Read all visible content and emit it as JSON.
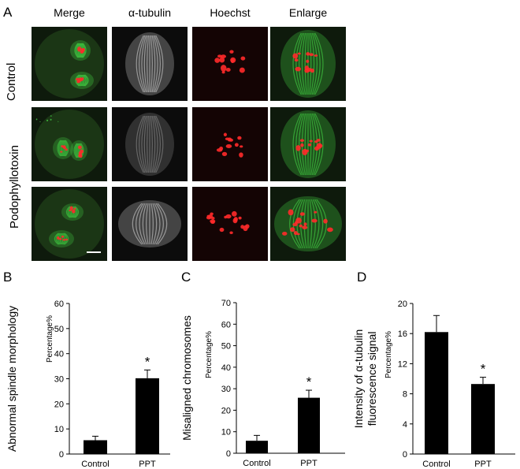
{
  "figure": {
    "panel_a": {
      "letter": "A",
      "columns": [
        "Merge",
        "α-tubulin",
        "Hoechst",
        "Enlarge"
      ],
      "row_labels": [
        "Control",
        "Podophyllotoxin"
      ]
    },
    "colors": {
      "bar": "#000000",
      "tubulin_green": "#3fbf3f",
      "chromosome_red": "#ff2a2a",
      "tubulin_gray": "#c8c8c8"
    }
  },
  "chart_data": [
    {
      "type": "bar",
      "panel": "B",
      "ylabel": "Abnormal spindle morphology",
      "ylabel_unit": "Percentage%",
      "categories": [
        "Control",
        "PPT"
      ],
      "values": [
        5.5,
        30.2
      ],
      "errors": [
        1.6,
        3.3
      ],
      "significance": [
        "",
        "*"
      ],
      "ylim": [
        0,
        60
      ],
      "yticks": [
        0,
        10,
        20,
        30,
        40,
        50,
        60
      ],
      "grid": false
    },
    {
      "type": "bar",
      "panel": "C",
      "ylabel": "Misaligned chromosomes",
      "ylabel_unit": "Percentage%",
      "categories": [
        "Control",
        "PPT"
      ],
      "values": [
        5.8,
        25.8
      ],
      "errors": [
        2.5,
        3.5
      ],
      "significance": [
        "",
        "*"
      ],
      "ylim": [
        0,
        70
      ],
      "yticks": [
        0,
        10,
        20,
        30,
        40,
        50,
        60,
        70
      ],
      "grid": false
    },
    {
      "type": "bar",
      "panel": "D",
      "ylabel": "Intensity of α-tubulin fluorescence signal",
      "ylabel_line1": "Intensity of α-tubulin",
      "ylabel_line2": "fluorescence signal",
      "ylabel_unit": "Percentage%",
      "categories": [
        "Control",
        "PPT"
      ],
      "values": [
        16.2,
        9.3
      ],
      "errors": [
        2.2,
        0.9
      ],
      "significance": [
        "",
        "*"
      ],
      "ylim": [
        0,
        20
      ],
      "yticks": [
        0,
        4,
        8,
        12,
        16,
        20
      ],
      "grid": false
    }
  ]
}
